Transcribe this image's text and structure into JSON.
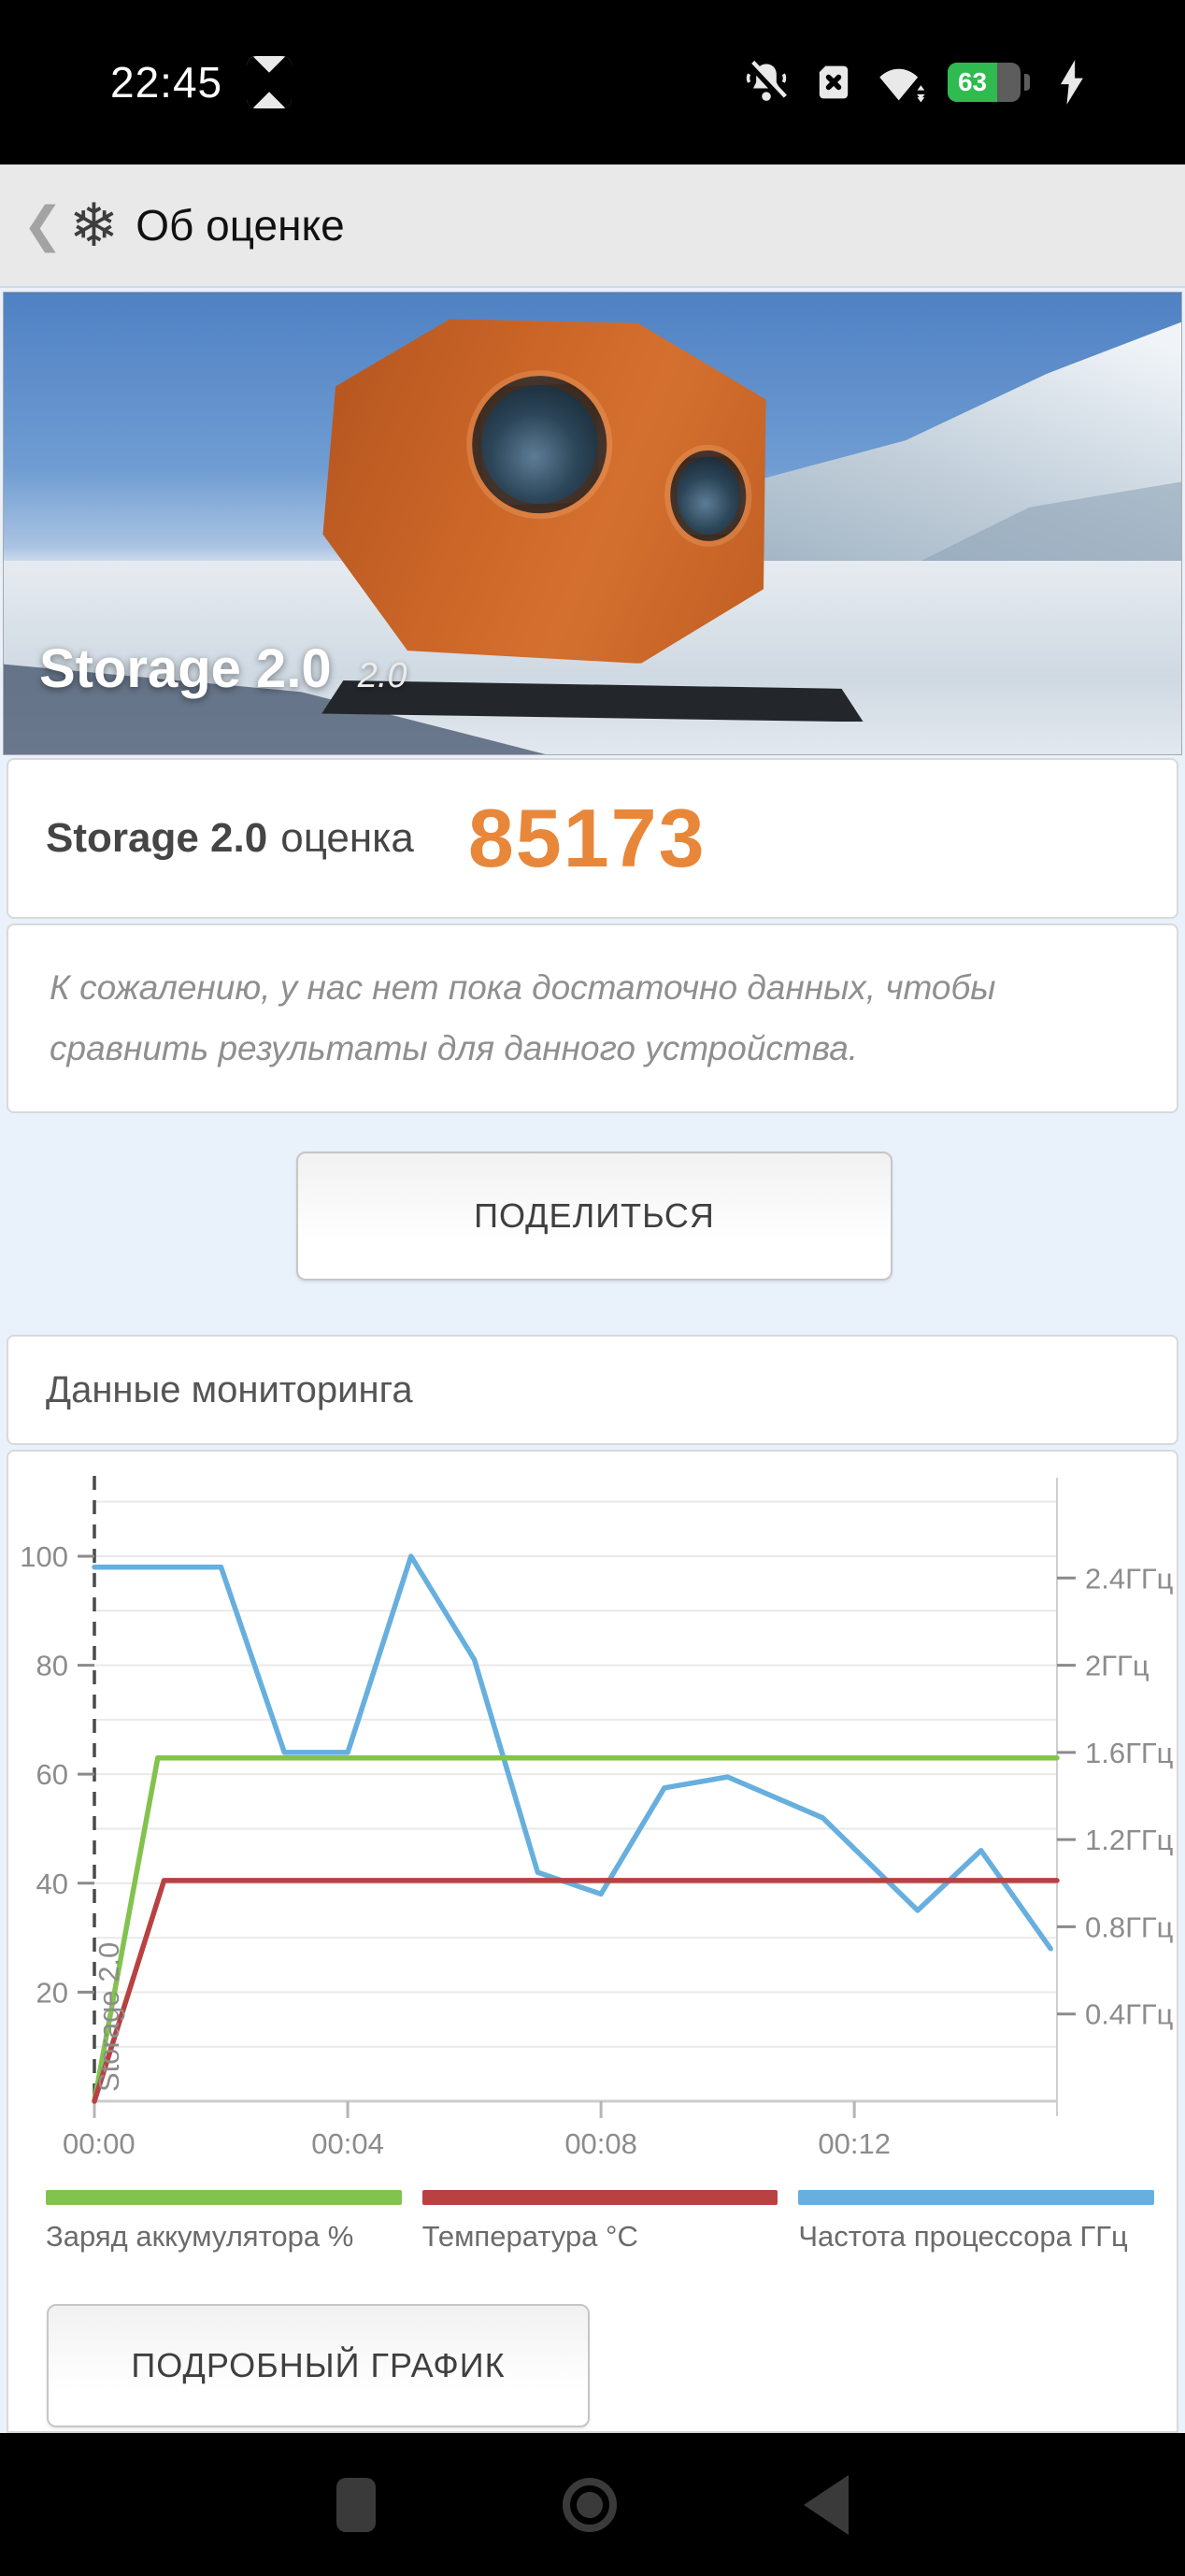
{
  "status_bar": {
    "time": "22:45",
    "battery_percent": "63"
  },
  "header": {
    "title": "Об оценке"
  },
  "hero": {
    "title": "Storage 2.0",
    "version": "2.0"
  },
  "score": {
    "benchmark": "Storage 2.0",
    "label": "оценка",
    "value": "85173",
    "accent_color": "#e8873a"
  },
  "notice": {
    "text": "К сожалению, у нас нет пока достаточно данных, чтобы сравнить результаты для данного устройства."
  },
  "share": {
    "button_label": "ПОДЕЛИТЬСЯ"
  },
  "monitoring": {
    "title": "Данные мониторинга",
    "detailed_button_label": "ПОДРОБНЫЙ ГРАФИК"
  },
  "chart_data": {
    "type": "line",
    "title": "Данные мониторинга",
    "x_unit": "время mm:ss",
    "x_tick_labels": [
      "00:00",
      "00:04",
      "00:08",
      "00:12"
    ],
    "x_tick_minutes": [
      0,
      4,
      8,
      12
    ],
    "x_range_minutes": [
      0,
      15.2
    ],
    "left_axis": {
      "ticks": [
        20,
        40,
        60,
        80,
        100
      ],
      "range": [
        0,
        112
      ]
    },
    "right_axis": {
      "tick_labels": [
        "0.4ГГц",
        "0.8ГГц",
        "1.2ГГц",
        "1.6ГГц",
        "2ГГц",
        "2.4ГГц"
      ],
      "ghz_values": [
        0.4,
        0.8,
        1.2,
        1.6,
        2.0,
        2.4
      ],
      "unit_per_ghz": 40
    },
    "annotation": "Storage 2.0",
    "grid": "horizontal every 10 units",
    "series": [
      {
        "name": "Частота процессора ГГц",
        "color": "#66afdf",
        "scale_note": "точки в единицах левой оси; ГГц = значение/40",
        "points": [
          [
            0,
            98
          ],
          [
            2,
            98
          ],
          [
            3,
            64
          ],
          [
            4,
            64
          ],
          [
            5,
            100
          ],
          [
            6,
            81
          ],
          [
            7,
            42
          ],
          [
            7.5,
            40
          ],
          [
            8,
            38
          ],
          [
            9,
            57.5
          ],
          [
            10,
            59.5
          ],
          [
            11.5,
            52
          ],
          [
            13,
            35
          ],
          [
            14,
            46
          ],
          [
            15.1,
            28
          ]
        ]
      },
      {
        "name": "Заряд аккумулятора %",
        "color": "#82c34e",
        "points": [
          [
            0,
            0
          ],
          [
            1,
            63
          ],
          [
            15.2,
            63
          ]
        ]
      },
      {
        "name": "Температура °C",
        "color": "#b94141",
        "points": [
          [
            0,
            0
          ],
          [
            1.1,
            40.5
          ],
          [
            15.2,
            40.5
          ]
        ]
      }
    ],
    "legend_order": [
      "Заряд аккумулятора %",
      "Температура °C",
      "Частота процессора ГГц"
    ],
    "legend_colors": [
      "#82c34e",
      "#b94141",
      "#66afdf"
    ]
  },
  "nav_bar": {
    "recents": "recents",
    "home": "home",
    "back": "back"
  }
}
